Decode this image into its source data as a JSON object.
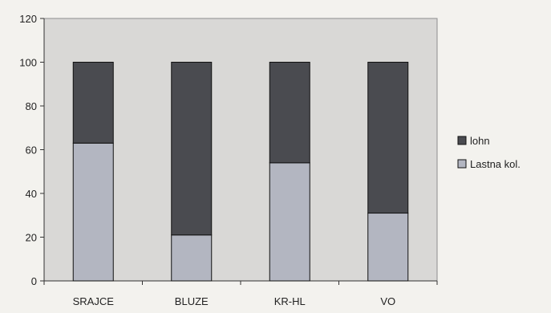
{
  "chart_data": {
    "type": "bar",
    "stacked": true,
    "categories": [
      "SRAJCE",
      "BLUZE",
      "KR-HL",
      "VO"
    ],
    "series": [
      {
        "name": "Lastna kol.",
        "values": [
          63,
          21,
          54,
          31
        ],
        "color": "#b3b6c1"
      },
      {
        "name": "lohn",
        "values": [
          37,
          79,
          46,
          69
        ],
        "color": "#4a4b50"
      }
    ],
    "y_ticks": [
      0,
      20,
      40,
      60,
      80,
      100,
      120
    ],
    "ylim": [
      0,
      120
    ],
    "legend": {
      "placement": "right",
      "order": [
        "lohn",
        "Lastna kol."
      ]
    },
    "plot_background": "#d9d8d6",
    "grid": false
  }
}
